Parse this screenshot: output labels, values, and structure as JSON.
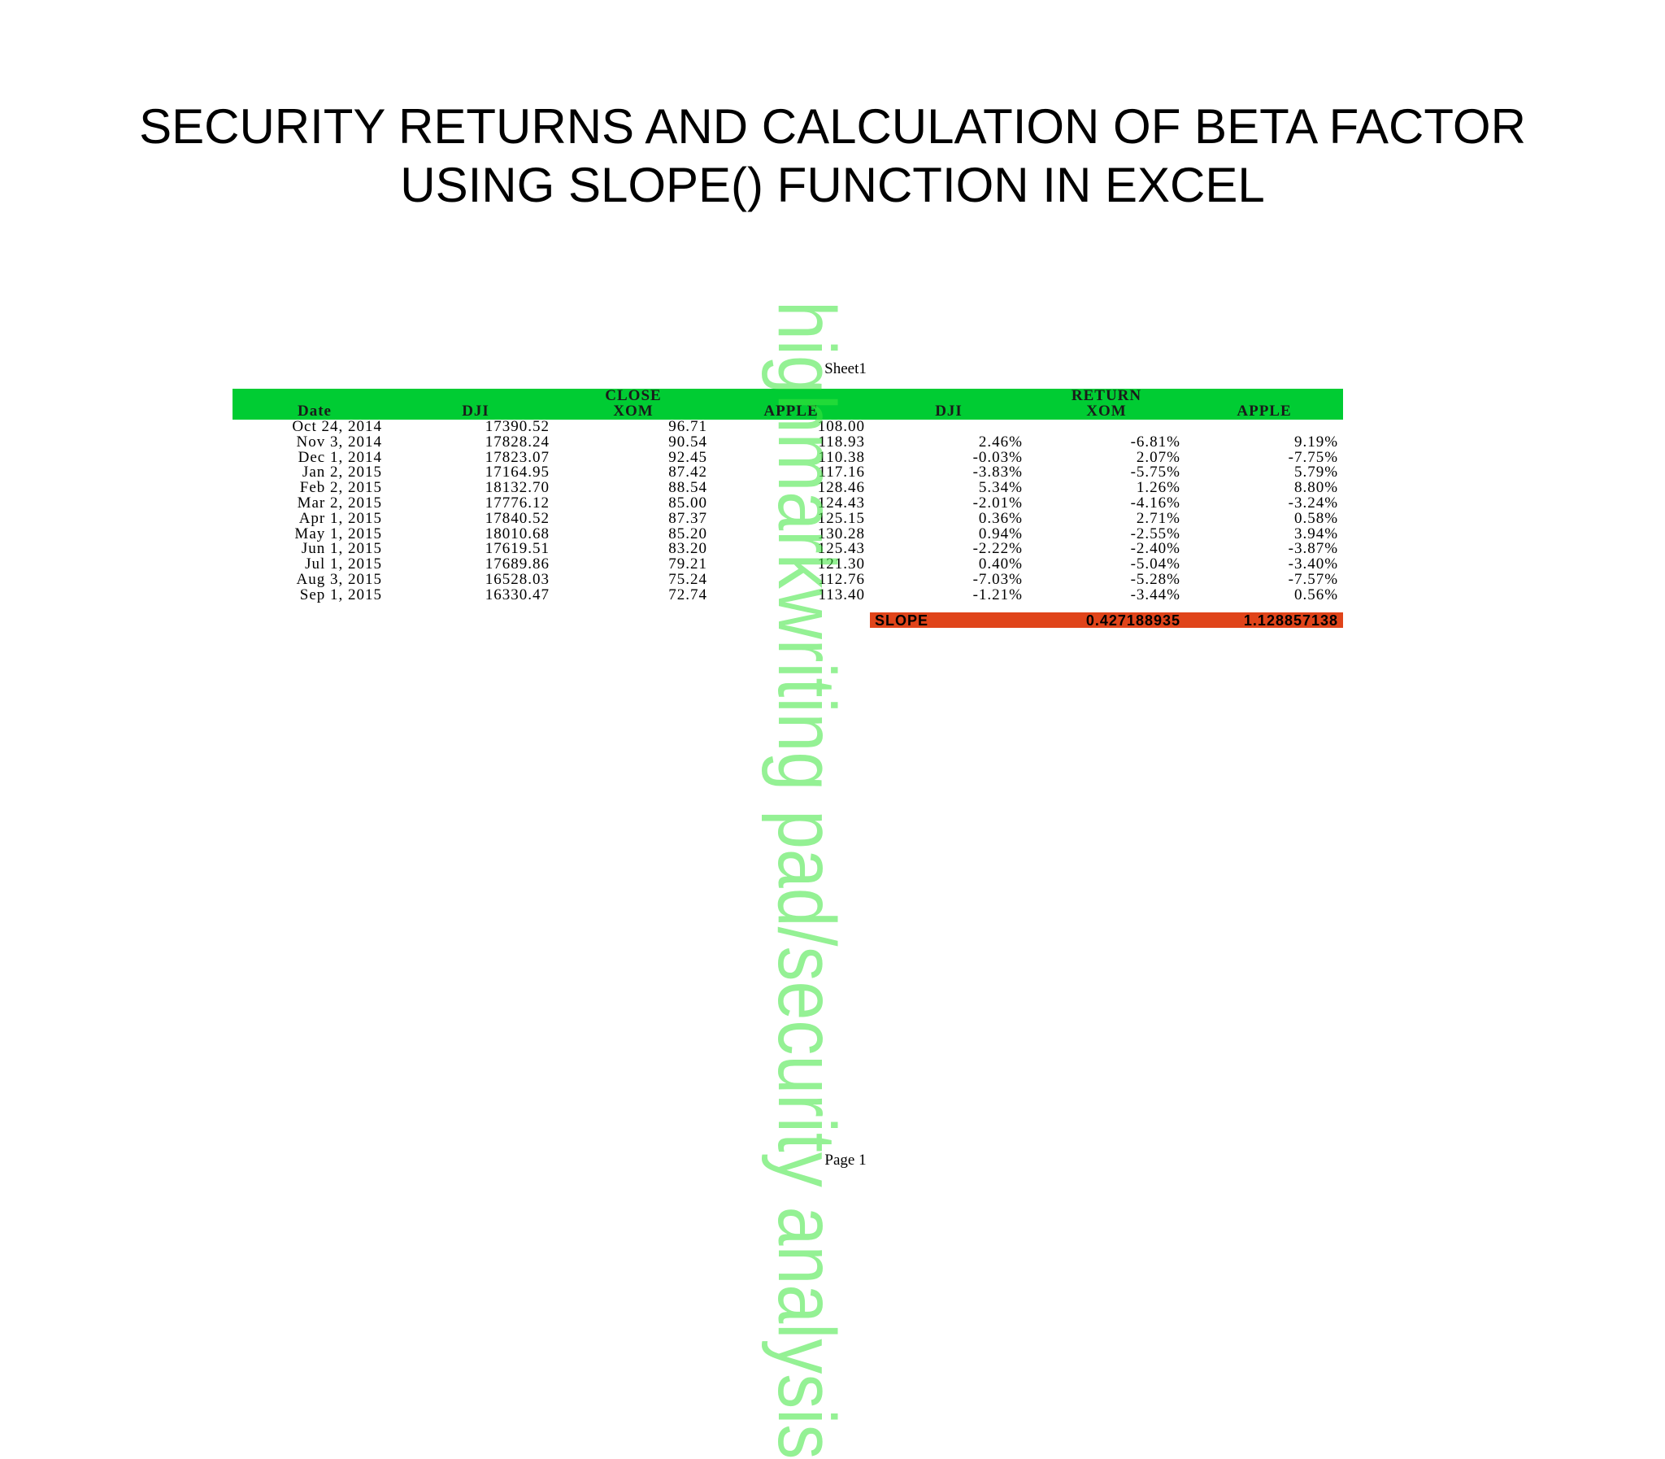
{
  "title": {
    "line1": "SECURITY RETURNS AND CALCULATION OF BETA FACTOR",
    "line2": "USING SLOPE() FUNCTION IN EXCEL"
  },
  "sheet_name": "Sheet1",
  "group_headers": {
    "close": "CLOSE",
    "return": "RETURN"
  },
  "columns": [
    "Date",
    "DJI",
    "XOM",
    "APPLE",
    "DJI",
    "XOM",
    "APPLE"
  ],
  "rows": [
    {
      "date": "Oct 24, 2014",
      "dji": "17390.52",
      "xom": "96.71",
      "apple": "108.00",
      "r_dji": "",
      "r_xom": "",
      "r_apple": ""
    },
    {
      "date": "Nov 3, 2014",
      "dji": "17828.24",
      "xom": "90.54",
      "apple": "118.93",
      "r_dji": "2.46%",
      "r_xom": "-6.81%",
      "r_apple": "9.19%"
    },
    {
      "date": "Dec 1, 2014",
      "dji": "17823.07",
      "xom": "92.45",
      "apple": "110.38",
      "r_dji": "-0.03%",
      "r_xom": "2.07%",
      "r_apple": "-7.75%"
    },
    {
      "date": "Jan 2, 2015",
      "dji": "17164.95",
      "xom": "87.42",
      "apple": "117.16",
      "r_dji": "-3.83%",
      "r_xom": "-5.75%",
      "r_apple": "5.79%"
    },
    {
      "date": "Feb 2, 2015",
      "dji": "18132.70",
      "xom": "88.54",
      "apple": "128.46",
      "r_dji": "5.34%",
      "r_xom": "1.26%",
      "r_apple": "8.80%"
    },
    {
      "date": "Mar 2, 2015",
      "dji": "17776.12",
      "xom": "85.00",
      "apple": "124.43",
      "r_dji": "-2.01%",
      "r_xom": "-4.16%",
      "r_apple": "-3.24%"
    },
    {
      "date": "Apr 1, 2015",
      "dji": "17840.52",
      "xom": "87.37",
      "apple": "125.15",
      "r_dji": "0.36%",
      "r_xom": "2.71%",
      "r_apple": "0.58%"
    },
    {
      "date": "May 1, 2015",
      "dji": "18010.68",
      "xom": "85.20",
      "apple": "130.28",
      "r_dji": "0.94%",
      "r_xom": "-2.55%",
      "r_apple": "3.94%"
    },
    {
      "date": "Jun 1, 2015",
      "dji": "17619.51",
      "xom": "83.20",
      "apple": "125.43",
      "r_dji": "-2.22%",
      "r_xom": "-2.40%",
      "r_apple": "-3.87%"
    },
    {
      "date": "Jul 1, 2015",
      "dji": "17689.86",
      "xom": "79.21",
      "apple": "121.30",
      "r_dji": "0.40%",
      "r_xom": "-5.04%",
      "r_apple": "-3.40%"
    },
    {
      "date": "Aug 3, 2015",
      "dji": "16528.03",
      "xom": "75.24",
      "apple": "112.76",
      "r_dji": "-7.03%",
      "r_xom": "-5.28%",
      "r_apple": "-7.57%"
    },
    {
      "date": "Sep 1, 2015",
      "dji": "16330.47",
      "xom": "72.74",
      "apple": "113.40",
      "r_dji": "-1.21%",
      "r_xom": "-3.44%",
      "r_apple": "0.56%"
    }
  ],
  "slope": {
    "label": "SLOPE",
    "xom": "0.427188935",
    "apple": "1.128857138"
  },
  "page_label": "Page 1",
  "watermark": "highmarkwriting pad/security analysis",
  "colors": {
    "header_green": "#00cc33",
    "slope_orange": "#e0441a",
    "watermark_green": "#3ce63c"
  }
}
